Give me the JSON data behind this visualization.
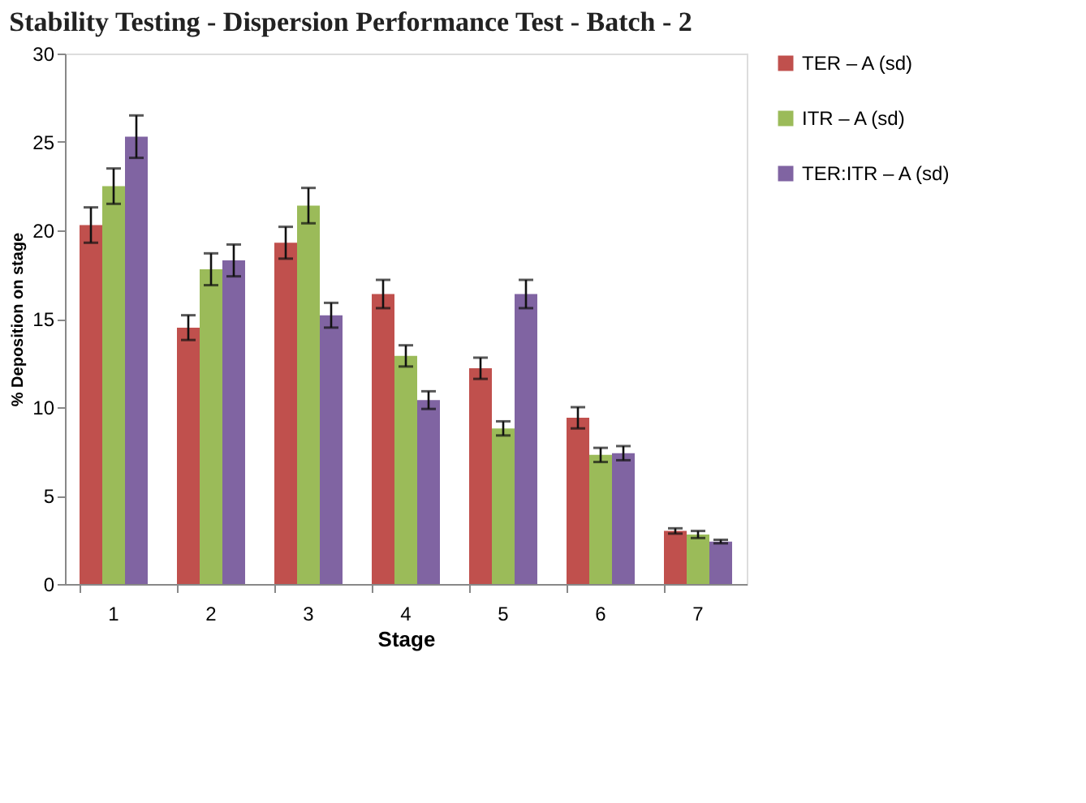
{
  "chart_data": {
    "type": "bar",
    "title": "Stability  Testing - Dispersion Performance Test - Batch - 2",
    "xlabel": "Stage",
    "ylabel": "% Deposition on stage",
    "categories": [
      "1",
      "2",
      "3",
      "4",
      "5",
      "6",
      "7"
    ],
    "series": [
      {
        "name": "TER – A (sd)",
        "color": "#c0504d",
        "values": [
          20.3,
          14.5,
          19.3,
          16.4,
          12.2,
          9.4,
          3.0
        ],
        "errors": [
          1.0,
          0.7,
          0.9,
          0.8,
          0.6,
          0.6,
          0.15
        ]
      },
      {
        "name": "ITR – A (sd)",
        "color": "#9bbb59",
        "values": [
          22.5,
          17.8,
          21.4,
          12.9,
          8.8,
          7.3,
          2.8
        ],
        "errors": [
          1.0,
          0.9,
          1.0,
          0.6,
          0.4,
          0.4,
          0.2
        ]
      },
      {
        "name": "TER:ITR – A (sd)",
        "color": "#8064a2",
        "values": [
          25.3,
          18.3,
          15.2,
          10.4,
          16.4,
          7.4,
          2.4
        ],
        "errors": [
          1.2,
          0.9,
          0.7,
          0.5,
          0.8,
          0.4,
          0.1
        ]
      }
    ],
    "ylim": [
      0,
      30
    ],
    "yticks": [
      0,
      5,
      10,
      15,
      20,
      25,
      30
    ],
    "grid": false,
    "legend": "right"
  }
}
